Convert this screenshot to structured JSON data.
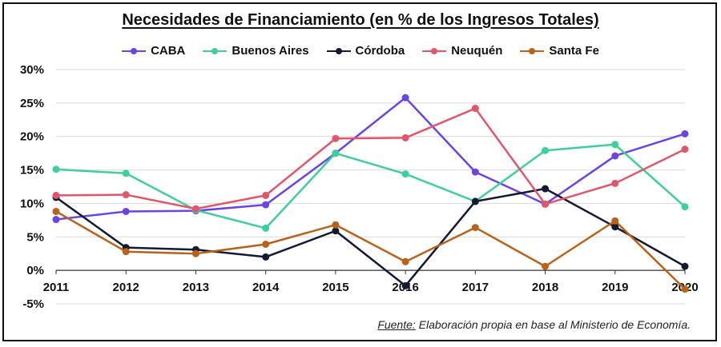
{
  "chart_data": {
    "type": "line",
    "title": "Necesidades de Financiamiento (en % de los Ingresos Totales)",
    "xlabel": "",
    "ylabel": "",
    "x": [
      "2011",
      "2012",
      "2013",
      "2014",
      "2015",
      "2016",
      "2017",
      "2018",
      "2019",
      "2020"
    ],
    "ylim": [
      -5,
      30
    ],
    "yticks": [
      -5,
      0,
      5,
      10,
      15,
      20,
      25,
      30
    ],
    "ytick_labels": [
      "-5%",
      "0%",
      "5%",
      "10%",
      "15%",
      "20%",
      "25%",
      "30%"
    ],
    "grid": "horizontal",
    "legend_position": "top",
    "series": [
      {
        "name": "CABA",
        "color": "#6c44e4",
        "values": [
          7.6,
          8.8,
          8.9,
          9.8,
          17.5,
          25.8,
          14.7,
          9.9,
          17.1,
          20.4
        ]
      },
      {
        "name": "Buenos Aires",
        "color": "#3fcf9a",
        "values": [
          15.1,
          14.5,
          9.0,
          6.3,
          17.5,
          14.4,
          10.3,
          17.9,
          18.8,
          9.5
        ]
      },
      {
        "name": "Córdoba",
        "color": "#141a33",
        "values": [
          10.9,
          3.4,
          3.1,
          2.0,
          5.9,
          -2.3,
          10.3,
          12.2,
          6.5,
          0.6
        ]
      },
      {
        "name": "Neuquén",
        "color": "#e0566b",
        "values": [
          11.2,
          11.3,
          9.2,
          11.2,
          19.7,
          19.8,
          24.2,
          9.9,
          13.0,
          18.1
        ]
      },
      {
        "name": "Santa Fe",
        "color": "#b8621a",
        "values": [
          8.8,
          2.8,
          2.5,
          3.9,
          6.8,
          1.3,
          6.4,
          0.6,
          7.4,
          -2.8
        ]
      }
    ]
  },
  "source": {
    "label": "Fuente:",
    "text": " Elaboración propia en base al  Ministerio de Economía."
  }
}
